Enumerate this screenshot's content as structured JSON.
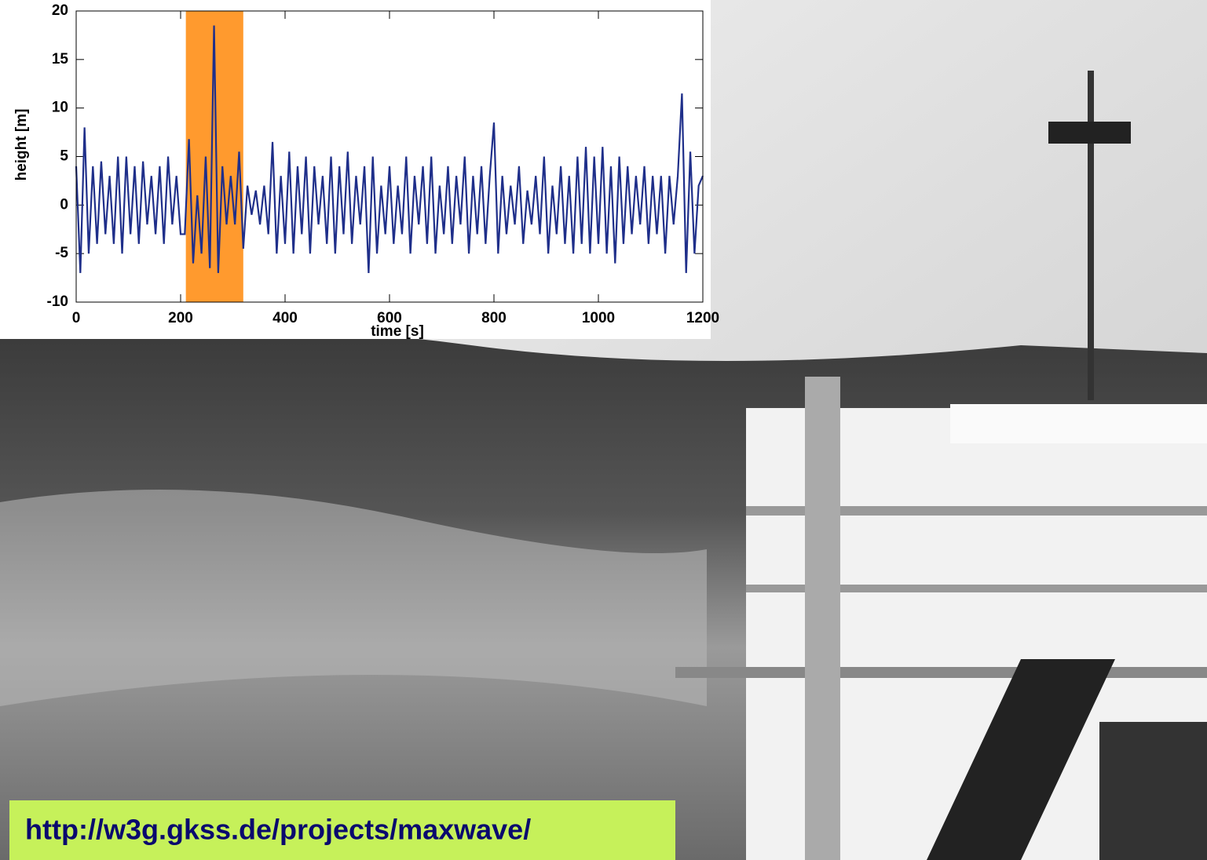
{
  "chart_data": {
    "type": "line",
    "xlabel": "time [s]",
    "ylabel": "height [m]",
    "xlim": [
      0,
      1200
    ],
    "ylim": [
      -10,
      20
    ],
    "xticks": [
      0,
      200,
      400,
      600,
      800,
      1000,
      1200
    ],
    "yticks": [
      -10,
      -5,
      0,
      5,
      10,
      15,
      20
    ],
    "highlight": [
      210,
      320
    ],
    "highlight_color": "#ff9a2e",
    "color": "#1f2f8a",
    "x": [
      0,
      8,
      16,
      24,
      32,
      40,
      48,
      56,
      64,
      72,
      80,
      88,
      96,
      104,
      112,
      120,
      128,
      136,
      144,
      152,
      160,
      168,
      176,
      184,
      192,
      200,
      208,
      216,
      224,
      232,
      240,
      248,
      256,
      264,
      272,
      280,
      288,
      296,
      304,
      312,
      320,
      328,
      336,
      344,
      352,
      360,
      368,
      376,
      384,
      392,
      400,
      408,
      416,
      424,
      432,
      440,
      448,
      456,
      464,
      472,
      480,
      488,
      496,
      504,
      512,
      520,
      528,
      536,
      544,
      552,
      560,
      568,
      576,
      584,
      592,
      600,
      608,
      616,
      624,
      632,
      640,
      648,
      656,
      664,
      672,
      680,
      688,
      696,
      704,
      712,
      720,
      728,
      736,
      744,
      752,
      760,
      768,
      776,
      784,
      792,
      800,
      808,
      816,
      824,
      832,
      840,
      848,
      856,
      864,
      872,
      880,
      888,
      896,
      904,
      912,
      920,
      928,
      936,
      944,
      952,
      960,
      968,
      976,
      984,
      992,
      1000,
      1008,
      1016,
      1024,
      1032,
      1040,
      1048,
      1056,
      1064,
      1072,
      1080,
      1088,
      1096,
      1104,
      1112,
      1120,
      1128,
      1136,
      1144,
      1152,
      1160,
      1168,
      1176,
      1184,
      1192,
      1200
    ],
    "values": [
      4,
      -7,
      8,
      -5,
      4,
      -4,
      4.5,
      -3,
      3,
      -4,
      5,
      -5,
      5,
      -3,
      4,
      -4,
      4.5,
      -2,
      3,
      -3,
      4,
      -4,
      5,
      -2,
      3,
      -3,
      -3,
      6.8,
      -6,
      1,
      -5,
      5,
      -6.5,
      18.5,
      -7,
      4,
      -2,
      3,
      -2,
      5.5,
      -4.5,
      2,
      -1,
      1.5,
      -2,
      2,
      -3,
      6.5,
      -5,
      3,
      -4,
      5.5,
      -5,
      4,
      -3,
      5,
      -5,
      4,
      -2,
      3,
      -4,
      5,
      -5,
      4,
      -3,
      5.5,
      -4,
      3,
      -2,
      4,
      -7,
      5,
      -5,
      2,
      -3,
      4,
      -4,
      2,
      -3,
      5,
      -5,
      3,
      -2,
      4,
      -4,
      5,
      -5,
      2,
      -3,
      4,
      -4,
      3,
      -2,
      5,
      -5,
      3,
      -3,
      4,
      -4,
      3,
      8.5,
      -5,
      3,
      -3,
      2,
      -2,
      4,
      -4,
      1.5,
      -2,
      3,
      -3,
      5,
      -5,
      2,
      -3,
      4,
      -4,
      3,
      -5,
      5,
      -4,
      6,
      -5,
      5,
      -4,
      6,
      -5,
      4,
      -6,
      5,
      -4,
      4,
      -3,
      3,
      -2,
      4,
      -4,
      3,
      -3,
      3,
      -5,
      3,
      -2,
      3,
      11.5,
      -7,
      5.5,
      -5,
      2,
      3
    ]
  },
  "url": "http://w3g.gkss.de/projects/maxwave/"
}
